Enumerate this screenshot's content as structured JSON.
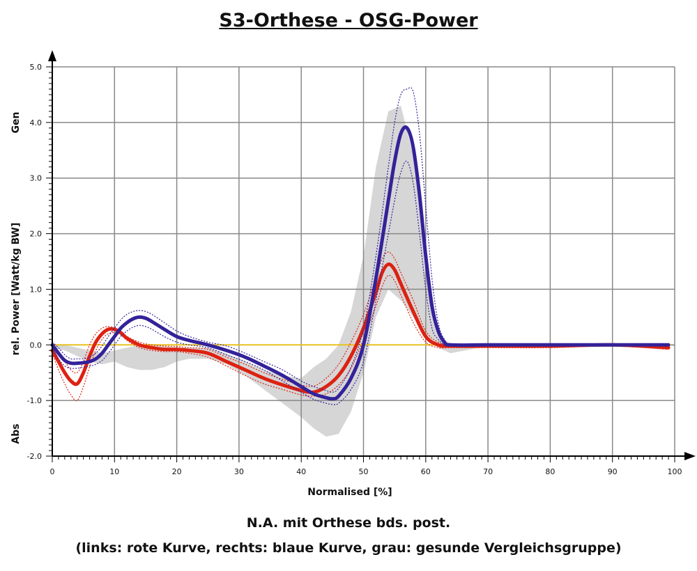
{
  "title": "S3-Orthese - OSG-Power",
  "caption_line1": "N.A. mit Orthese bds. post.",
  "caption_line2": "(links: rote Kurve, rechts: blaue Kurve, grau: gesunde Vergleichsgruppe)",
  "chart_data": {
    "type": "line",
    "title": "S3-Orthese - OSG-Power",
    "xlabel": "Normalised [%]",
    "ylabel": "rel. Power [Watt/kg BW]",
    "ylabel_top": "Gen",
    "ylabel_bottom": "Abs",
    "xlim": [
      0,
      100
    ],
    "ylim": [
      -2.0,
      5.0
    ],
    "xticks": [
      0,
      10,
      20,
      30,
      40,
      50,
      60,
      70,
      80,
      90,
      100
    ],
    "xtick_labels": [
      "0",
      "10",
      "20",
      "30",
      "40",
      "50",
      "60",
      "70",
      "80",
      "90",
      "100"
    ],
    "yticks": [
      -2.0,
      -1.0,
      0.0,
      1.0,
      2.0,
      3.0,
      4.0,
      5.0
    ],
    "ytick_labels": [
      "-2.0",
      "-1.0",
      "0.0",
      "1.0",
      "2.0",
      "3.0",
      "4.0",
      "5.0"
    ],
    "grid": true,
    "colors": {
      "left": "#dd2211",
      "right": "#332299",
      "band": "#d6d6d6",
      "zero": "#e8c020",
      "grid": "#888888"
    },
    "normal_band": {
      "x": [
        0,
        2,
        4,
        6,
        8,
        10,
        12,
        14,
        16,
        18,
        20,
        22,
        25,
        28,
        31,
        34,
        37,
        40,
        42,
        44,
        46,
        48,
        50,
        52,
        54,
        56,
        58,
        60,
        62,
        64,
        70,
        100
      ],
      "upper": [
        0.0,
        0.0,
        -0.05,
        -0.1,
        -0.15,
        -0.1,
        -0.05,
        0.0,
        0.0,
        -0.02,
        -0.05,
        -0.05,
        -0.05,
        -0.15,
        -0.3,
        -0.45,
        -0.55,
        -0.6,
        -0.4,
        -0.25,
        0.0,
        0.6,
        1.6,
        3.2,
        4.2,
        4.3,
        3.4,
        1.7,
        0.2,
        0.0,
        0.0,
        0.0
      ],
      "lower": [
        -0.05,
        -0.1,
        -0.2,
        -0.3,
        -0.35,
        -0.3,
        -0.4,
        -0.45,
        -0.45,
        -0.4,
        -0.3,
        -0.25,
        -0.25,
        -0.35,
        -0.55,
        -0.8,
        -1.05,
        -1.3,
        -1.5,
        -1.65,
        -1.6,
        -1.2,
        -0.5,
        0.5,
        1.0,
        0.8,
        0.5,
        0.2,
        -0.05,
        -0.15,
        -0.02,
        -0.02
      ]
    },
    "series": [
      {
        "key": "left",
        "mean_x": [
          0,
          1,
          2,
          3,
          4,
          5,
          6,
          7,
          8,
          9,
          10,
          11,
          12,
          14,
          16,
          18,
          20,
          22,
          25,
          28,
          31,
          34,
          37,
          40,
          42,
          44,
          46,
          48,
          50,
          52,
          53,
          54,
          55,
          56,
          58,
          60,
          62,
          64,
          70,
          80,
          90,
          99
        ],
        "mean": [
          -0.1,
          -0.3,
          -0.5,
          -0.65,
          -0.7,
          -0.5,
          -0.2,
          0.05,
          0.2,
          0.28,
          0.28,
          0.22,
          0.12,
          0.0,
          -0.05,
          -0.08,
          -0.08,
          -0.1,
          -0.15,
          -0.3,
          -0.45,
          -0.6,
          -0.72,
          -0.82,
          -0.85,
          -0.75,
          -0.55,
          -0.2,
          0.3,
          0.95,
          1.3,
          1.45,
          1.35,
          1.1,
          0.6,
          0.15,
          0.0,
          -0.02,
          -0.02,
          -0.02,
          0.0,
          -0.05
        ],
        "upper": [
          -0.05,
          -0.15,
          -0.3,
          -0.45,
          -0.5,
          -0.3,
          0.0,
          0.2,
          0.3,
          0.33,
          0.3,
          0.22,
          0.15,
          0.05,
          0.0,
          -0.02,
          -0.03,
          -0.05,
          -0.08,
          -0.22,
          -0.35,
          -0.5,
          -0.62,
          -0.72,
          -0.74,
          -0.6,
          -0.35,
          0.05,
          0.55,
          1.2,
          1.55,
          1.67,
          1.55,
          1.3,
          0.8,
          0.25,
          0.05,
          0.0,
          0.0,
          0.0,
          0.02,
          -0.02
        ],
        "lower": [
          -0.15,
          -0.45,
          -0.7,
          -0.9,
          -1.0,
          -0.75,
          -0.4,
          -0.1,
          0.1,
          0.2,
          0.22,
          0.18,
          0.08,
          -0.05,
          -0.1,
          -0.12,
          -0.12,
          -0.15,
          -0.22,
          -0.38,
          -0.55,
          -0.7,
          -0.8,
          -0.9,
          -0.92,
          -0.88,
          -0.72,
          -0.42,
          0.1,
          0.7,
          1.05,
          1.25,
          1.15,
          0.9,
          0.4,
          0.05,
          -0.05,
          -0.05,
          -0.05,
          -0.05,
          -0.02,
          -0.08
        ]
      },
      {
        "key": "right",
        "mean_x": [
          0,
          1,
          2,
          3,
          4,
          5,
          6,
          7,
          8,
          9,
          10,
          11,
          12,
          13,
          14,
          15,
          16,
          18,
          20,
          22,
          25,
          28,
          31,
          34,
          37,
          40,
          42,
          44,
          45,
          46,
          48,
          50,
          52,
          54,
          55,
          56,
          57,
          58,
          59,
          60,
          61,
          62,
          63,
          64,
          70,
          80,
          90,
          99
        ],
        "mean": [
          0.0,
          -0.15,
          -0.28,
          -0.33,
          -0.33,
          -0.32,
          -0.3,
          -0.25,
          -0.15,
          0.0,
          0.15,
          0.3,
          0.4,
          0.47,
          0.5,
          0.48,
          0.42,
          0.28,
          0.15,
          0.08,
          0.0,
          -0.1,
          -0.22,
          -0.38,
          -0.55,
          -0.75,
          -0.88,
          -0.95,
          -0.97,
          -0.92,
          -0.6,
          0.0,
          1.2,
          2.6,
          3.3,
          3.8,
          3.9,
          3.55,
          2.7,
          1.6,
          0.7,
          0.25,
          0.05,
          0.0,
          0.0,
          0.0,
          0.0,
          0.0
        ],
        "upper": [
          0.05,
          -0.05,
          -0.18,
          -0.25,
          -0.25,
          -0.25,
          -0.22,
          -0.15,
          -0.02,
          0.15,
          0.3,
          0.45,
          0.55,
          0.6,
          0.62,
          0.6,
          0.55,
          0.4,
          0.25,
          0.15,
          0.05,
          -0.02,
          -0.15,
          -0.3,
          -0.45,
          -0.65,
          -0.75,
          -0.82,
          -0.85,
          -0.78,
          -0.4,
          0.3,
          1.6,
          3.2,
          4.0,
          4.5,
          4.6,
          4.55,
          3.8,
          2.5,
          1.2,
          0.4,
          0.1,
          0.02,
          0.02,
          0.02,
          0.02,
          0.02
        ],
        "lower": [
          -0.05,
          -0.25,
          -0.38,
          -0.42,
          -0.42,
          -0.4,
          -0.38,
          -0.35,
          -0.28,
          -0.15,
          0.0,
          0.15,
          0.25,
          0.32,
          0.35,
          0.33,
          0.28,
          0.15,
          0.05,
          0.0,
          -0.05,
          -0.18,
          -0.3,
          -0.45,
          -0.65,
          -0.85,
          -0.98,
          -1.05,
          -1.07,
          -1.05,
          -0.8,
          -0.3,
          0.8,
          2.0,
          2.6,
          3.1,
          3.3,
          2.9,
          2.0,
          1.0,
          0.3,
          0.1,
          0.0,
          -0.02,
          -0.02,
          -0.02,
          -0.02,
          -0.02
        ]
      }
    ]
  }
}
